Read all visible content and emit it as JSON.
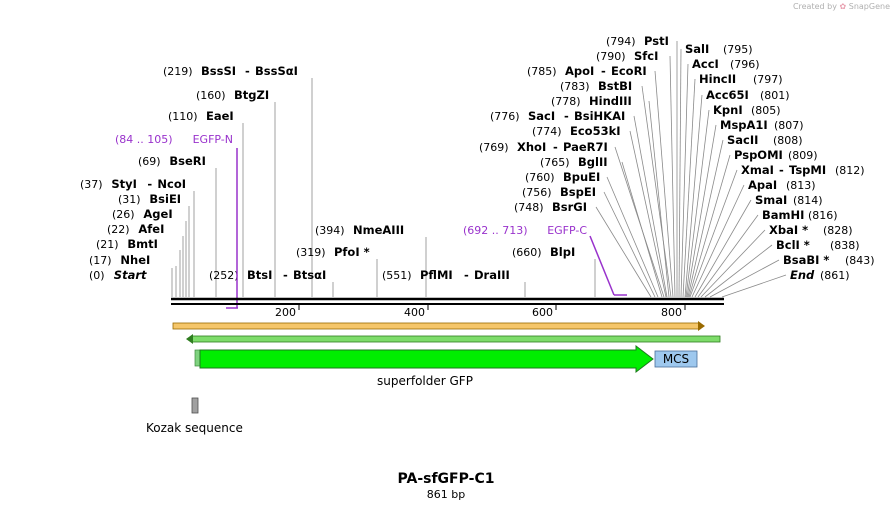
{
  "creator": {
    "label": "Created by",
    "brand": "SnapGene"
  },
  "map": {
    "title": "PA-sfGFP-C1",
    "length_label": "861 bp",
    "length_bp": 861
  },
  "axis": {
    "ticks": [
      "200",
      "400",
      "600",
      "800"
    ]
  },
  "features": {
    "gfp_label": "superfolder GFP",
    "mcs_label": "MCS",
    "kozak_label": "Kozak sequence"
  },
  "colors": {
    "gfp": "#00ee00",
    "mcs": "#9ec8ee",
    "feature_text": "#9932cc",
    "orf_orange": "#f5a623",
    "orf_green": "#3cb44b"
  },
  "sites_left": [
    {
      "pos": "(0)",
      "name": "Start",
      "italic": true
    },
    {
      "pos": "(17)",
      "name": "NheI"
    },
    {
      "pos": "(21)",
      "name": "BmtI"
    },
    {
      "pos": "(22)",
      "name": "AfeI"
    },
    {
      "pos": "(26)",
      "name": "AgeI"
    },
    {
      "pos": "(31)",
      "name": "BsiEI"
    },
    {
      "pos": "(37)",
      "name": "StyI",
      "name2": "NcoI"
    },
    {
      "pos": "(69)",
      "name": "BseRI"
    },
    {
      "pos": "(84 .. 105)",
      "name": "EGFP-N",
      "feature": true
    },
    {
      "pos": "(110)",
      "name": "EaeI"
    },
    {
      "pos": "(160)",
      "name": "BtgZI"
    },
    {
      "pos": "(219)",
      "name": "BssSI",
      "name2": "BssSαI"
    }
  ],
  "sites_mid": [
    {
      "pos": "(252)",
      "name": "BtsI",
      "name2": "BtsαI"
    },
    {
      "pos": "(319)",
      "name": "PfoI *"
    },
    {
      "pos": "(394)",
      "name": "NmeAIII"
    },
    {
      "pos": "(551)",
      "name": "PflMI",
      "name2": "DraIII"
    },
    {
      "pos": "(660)",
      "name": "BlpI"
    },
    {
      "pos": "(692 .. 713)",
      "name": "EGFP-C",
      "feature": true
    }
  ],
  "sites_right_a": [
    {
      "pos": "(748)",
      "name": "BsrGI"
    },
    {
      "pos": "(756)",
      "name": "BspEI"
    },
    {
      "pos": "(760)",
      "name": "BpuEI"
    },
    {
      "pos": "(765)",
      "name": "BglII"
    },
    {
      "pos": "(769)",
      "name": "XhoI",
      "name2": "PaeR7I"
    },
    {
      "pos": "(774)",
      "name": "Eco53kI"
    },
    {
      "pos": "(776)",
      "name": "SacI",
      "name2": "BsiHKAI"
    },
    {
      "pos": "(778)",
      "name": "HindIII"
    },
    {
      "pos": "(783)",
      "name": "BstBI"
    },
    {
      "pos": "(785)",
      "name": "ApoI",
      "name2": "EcoRI"
    },
    {
      "pos": "(790)",
      "name": "SfcI"
    },
    {
      "pos": "(794)",
      "name": "PstI"
    }
  ],
  "sites_right_b": [
    {
      "pos": "(795)",
      "name": "SalI"
    },
    {
      "pos": "(796)",
      "name": "AccI"
    },
    {
      "pos": "(797)",
      "name": "HincII"
    },
    {
      "pos": "(801)",
      "name": "Acc65I"
    },
    {
      "pos": "(805)",
      "name": "KpnI"
    },
    {
      "pos": "(807)",
      "name": "MspA1I"
    },
    {
      "pos": "(808)",
      "name": "SacII"
    },
    {
      "pos": "(809)",
      "name": "PspOMI"
    },
    {
      "pos": "(812)",
      "name": "XmaI",
      "name2": "TspMI",
      "pos_after_name2": true
    },
    {
      "pos": "(813)",
      "name": "ApaI"
    },
    {
      "pos": "(814)",
      "name": "SmaI"
    },
    {
      "pos": "(816)",
      "name": "BamHI"
    },
    {
      "pos": "(828)",
      "name": "XbaI *"
    },
    {
      "pos": "(838)",
      "name": "BclI *"
    },
    {
      "pos": "(843)",
      "name": "BsaBI *"
    },
    {
      "pos": "(861)",
      "name": "End",
      "italic": true
    }
  ]
}
